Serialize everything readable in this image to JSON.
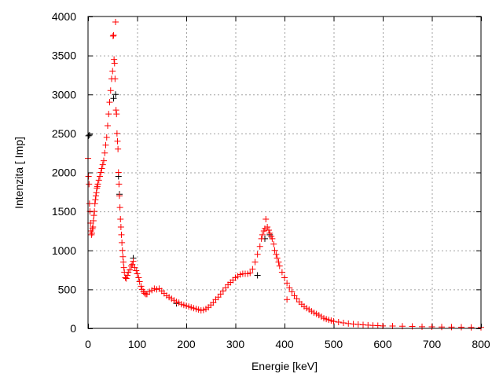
{
  "chart_data": {
    "type": "scatter",
    "title": "",
    "xlabel": "Energie [keV]",
    "ylabel": "Intenzita [ Imp]",
    "xlim": [
      0,
      800
    ],
    "ylim": [
      0,
      4000
    ],
    "xticks": [
      0,
      100,
      200,
      300,
      400,
      500,
      600,
      700,
      800
    ],
    "yticks": [
      0,
      500,
      1000,
      1500,
      2000,
      2500,
      3000,
      3500,
      4000
    ],
    "grid": true,
    "marker": "plus",
    "series": [
      {
        "color": "#000000",
        "points": [
          [
            1,
            2470
          ],
          [
            3,
            2480
          ],
          [
            52,
            2950
          ],
          [
            56,
            3000
          ],
          [
            62,
            1950
          ],
          [
            64,
            1720
          ],
          [
            92,
            900
          ],
          [
            180,
            320
          ],
          [
            345,
            680
          ],
          [
            360,
            1150
          ],
          [
            370,
            1200
          ]
        ]
      },
      {
        "color": "#ff0000",
        "points": [
          [
            0,
            2180
          ],
          [
            1,
            1950
          ],
          [
            2,
            1850
          ],
          [
            3,
            1600
          ],
          [
            4,
            1500
          ],
          [
            5,
            1350
          ],
          [
            6,
            1250
          ],
          [
            7,
            1200
          ],
          [
            8,
            1220
          ],
          [
            9,
            1280
          ],
          [
            10,
            1300
          ],
          [
            11,
            1380
          ],
          [
            12,
            1450
          ],
          [
            13,
            1500
          ],
          [
            14,
            1600
          ],
          [
            15,
            1650
          ],
          [
            16,
            1700
          ],
          [
            17,
            1740
          ],
          [
            18,
            1800
          ],
          [
            19,
            1820
          ],
          [
            20,
            1850
          ],
          [
            22,
            1900
          ],
          [
            24,
            1950
          ],
          [
            26,
            2000
          ],
          [
            28,
            2050
          ],
          [
            30,
            2100
          ],
          [
            32,
            2150
          ],
          [
            34,
            2250
          ],
          [
            36,
            2350
          ],
          [
            38,
            2450
          ],
          [
            40,
            2600
          ],
          [
            42,
            2750
          ],
          [
            44,
            2900
          ],
          [
            46,
            3050
          ],
          [
            48,
            3200
          ],
          [
            50,
            3300
          ],
          [
            51,
            3750
          ],
          [
            52,
            3760
          ],
          [
            53,
            3450
          ],
          [
            54,
            3400
          ],
          [
            55,
            3200
          ],
          [
            56,
            3930
          ],
          [
            57,
            2800
          ],
          [
            58,
            2750
          ],
          [
            59,
            2500
          ],
          [
            60,
            2400
          ],
          [
            61,
            2300
          ],
          [
            62,
            2000
          ],
          [
            63,
            1850
          ],
          [
            64,
            1700
          ],
          [
            65,
            1550
          ],
          [
            66,
            1400
          ],
          [
            67,
            1300
          ],
          [
            68,
            1200
          ],
          [
            69,
            1100
          ],
          [
            70,
            1000
          ],
          [
            71,
            920
          ],
          [
            72,
            850
          ],
          [
            73,
            780
          ],
          [
            74,
            720
          ],
          [
            76,
            650
          ],
          [
            78,
            640
          ],
          [
            80,
            680
          ],
          [
            82,
            720
          ],
          [
            85,
            750
          ],
          [
            88,
            800
          ],
          [
            90,
            820
          ],
          [
            92,
            860
          ],
          [
            95,
            780
          ],
          [
            98,
            740
          ],
          [
            100,
            700
          ],
          [
            103,
            650
          ],
          [
            105,
            600
          ],
          [
            108,
            540
          ],
          [
            110,
            500
          ],
          [
            113,
            470
          ],
          [
            115,
            450
          ],
          [
            118,
            440
          ],
          [
            120,
            440
          ],
          [
            125,
            470
          ],
          [
            130,
            490
          ],
          [
            135,
            510
          ],
          [
            140,
            500
          ],
          [
            145,
            510
          ],
          [
            150,
            480
          ],
          [
            155,
            450
          ],
          [
            160,
            420
          ],
          [
            165,
            400
          ],
          [
            170,
            380
          ],
          [
            175,
            360
          ],
          [
            180,
            340
          ],
          [
            185,
            330
          ],
          [
            190,
            310
          ],
          [
            195,
            300
          ],
          [
            200,
            290
          ],
          [
            205,
            280
          ],
          [
            210,
            270
          ],
          [
            215,
            260
          ],
          [
            220,
            250
          ],
          [
            225,
            240
          ],
          [
            230,
            230
          ],
          [
            235,
            235
          ],
          [
            240,
            250
          ],
          [
            245,
            270
          ],
          [
            250,
            300
          ],
          [
            255,
            330
          ],
          [
            260,
            370
          ],
          [
            265,
            400
          ],
          [
            270,
            440
          ],
          [
            275,
            480
          ],
          [
            280,
            520
          ],
          [
            285,
            560
          ],
          [
            290,
            590
          ],
          [
            295,
            620
          ],
          [
            300,
            650
          ],
          [
            305,
            670
          ],
          [
            310,
            690
          ],
          [
            315,
            700
          ],
          [
            320,
            700
          ],
          [
            325,
            700
          ],
          [
            330,
            710
          ],
          [
            335,
            760
          ],
          [
            340,
            850
          ],
          [
            345,
            950
          ],
          [
            350,
            1050
          ],
          [
            353,
            1150
          ],
          [
            355,
            1200
          ],
          [
            358,
            1250
          ],
          [
            360,
            1280
          ],
          [
            362,
            1400
          ],
          [
            365,
            1300
          ],
          [
            368,
            1260
          ],
          [
            370,
            1220
          ],
          [
            373,
            1180
          ],
          [
            375,
            1150
          ],
          [
            378,
            1080
          ],
          [
            380,
            1000
          ],
          [
            383,
            950
          ],
          [
            385,
            900
          ],
          [
            388,
            850
          ],
          [
            390,
            800
          ],
          [
            395,
            720
          ],
          [
            400,
            650
          ],
          [
            405,
            370
          ],
          [
            405,
            580
          ],
          [
            410,
            520
          ],
          [
            415,
            470
          ],
          [
            420,
            420
          ],
          [
            425,
            380
          ],
          [
            430,
            340
          ],
          [
            435,
            310
          ],
          [
            440,
            280
          ],
          [
            445,
            260
          ],
          [
            450,
            240
          ],
          [
            455,
            220
          ],
          [
            460,
            200
          ],
          [
            465,
            185
          ],
          [
            470,
            170
          ],
          [
            475,
            150
          ],
          [
            480,
            130
          ],
          [
            485,
            120
          ],
          [
            490,
            110
          ],
          [
            495,
            100
          ],
          [
            500,
            90
          ],
          [
            510,
            80
          ],
          [
            520,
            70
          ],
          [
            530,
            62
          ],
          [
            540,
            55
          ],
          [
            550,
            50
          ],
          [
            560,
            45
          ],
          [
            570,
            42
          ],
          [
            580,
            38
          ],
          [
            590,
            35
          ],
          [
            600,
            32
          ],
          [
            620,
            30
          ],
          [
            640,
            28
          ],
          [
            660,
            25
          ],
          [
            680,
            22
          ],
          [
            700,
            20
          ],
          [
            720,
            18
          ],
          [
            740,
            16
          ],
          [
            760,
            15
          ],
          [
            780,
            13
          ],
          [
            800,
            12
          ]
        ]
      }
    ]
  }
}
